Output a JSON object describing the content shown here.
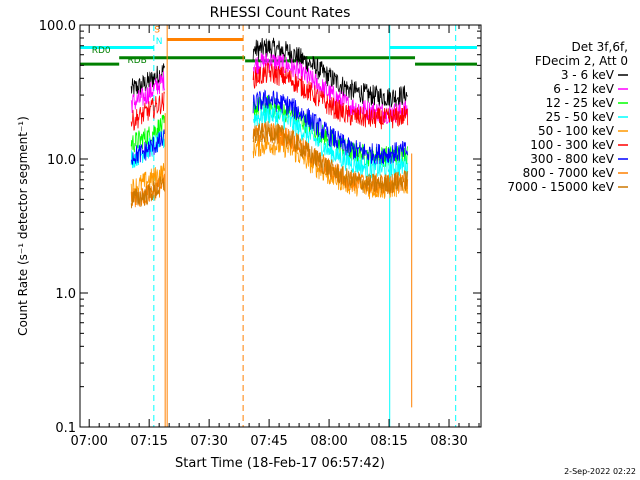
{
  "chart_data": {
    "type": "line",
    "title": "RHESSI Count Rates",
    "xlabel": "Start Time (18-Feb-17 06:57:42)",
    "ylabel": "Count Rate (s⁻¹ detector segment⁻¹)",
    "y_scale": "log",
    "ylim": [
      0.1,
      100.0
    ],
    "xlim": [
      "06:57:42",
      "08:38:00"
    ],
    "x_ticks": [
      "07:00",
      "07:15",
      "07:30",
      "07:45",
      "08:00",
      "08:15",
      "08:30"
    ],
    "y_ticks": [
      "0.1",
      "1.0",
      "10.0",
      "100.0"
    ],
    "grid": false,
    "legend_position": "right",
    "legend_header": [
      "Det 3f,6f,",
      "FDecim 2, Att 0"
    ],
    "series": [
      {
        "name": "3 - 6 keV",
        "color": "#000000",
        "segments": [
          {
            "t": [
              "07:10:30",
              "07:13:00",
              "07:15:00",
              "07:17:00",
              "07:18:50"
            ],
            "y": [
              33,
              35,
              38,
              42,
              46
            ]
          },
          {
            "t": [
              "07:41:00",
              "07:45:00",
              "07:50:00",
              "07:55:00",
              "08:00:00",
              "08:05:00",
              "08:10:00",
              "08:15:00",
              "08:19:40"
            ],
            "y": [
              65,
              68,
              63,
              52,
              41,
              33,
              30,
              29,
              30
            ]
          }
        ]
      },
      {
        "name": "6 - 12 keV",
        "color": "#ff00ff",
        "segments": [
          {
            "t": [
              "07:10:30",
              "07:13:00",
              "07:15:00",
              "07:17:00",
              "07:18:50"
            ],
            "y": [
              26,
              28,
              31,
              35,
              39
            ]
          },
          {
            "t": [
              "07:41:00",
              "07:45:00",
              "07:50:00",
              "07:55:00",
              "08:00:00",
              "08:05:00",
              "08:10:00",
              "08:15:00",
              "08:19:40"
            ],
            "y": [
              50,
              54,
              49,
              40,
              31,
              25,
              23,
              22,
              23
            ]
          }
        ]
      },
      {
        "name": "12 - 25 keV",
        "color": "#00ff00",
        "segments": [
          {
            "t": [
              "07:10:30",
              "07:13:00",
              "07:15:00",
              "07:17:00",
              "07:18:50"
            ],
            "y": [
              13,
              14,
              15,
              17,
              18
            ]
          },
          {
            "t": [
              "07:41:00",
              "07:45:00",
              "07:50:00",
              "07:55:00",
              "08:00:00",
              "08:05:00",
              "08:10:00",
              "08:15:00",
              "08:19:40"
            ],
            "y": [
              24,
              25,
              22,
              18,
              14,
              11.5,
              10.5,
              10.5,
              11
            ]
          }
        ]
      },
      {
        "name": "25 - 50 keV",
        "color": "#00ffff",
        "segments": [
          {
            "t": [
              "07:10:30",
              "07:13:00",
              "07:15:00",
              "07:17:00",
              "07:18:50"
            ],
            "y": [
              10,
              11,
              12,
              13,
              14
            ]
          },
          {
            "t": [
              "07:41:00",
              "07:45:00",
              "07:50:00",
              "07:55:00",
              "08:00:00",
              "08:05:00",
              "08:10:00",
              "08:15:00",
              "08:19:40"
            ],
            "y": [
              20,
              22,
              19,
              15,
              11.5,
              9.5,
              8.5,
              8.5,
              9
            ]
          }
        ]
      },
      {
        "name": "50 - 100 keV",
        "color": "#ff9900",
        "segments": [
          {
            "t": [
              "07:10:30",
              "07:13:00",
              "07:15:00",
              "07:17:00",
              "07:18:50"
            ],
            "y": [
              6,
              6.5,
              7,
              7.5,
              8
            ]
          },
          {
            "t": [
              "07:41:00",
              "07:45:00",
              "07:50:00",
              "07:55:00",
              "08:00:00",
              "08:05:00",
              "08:10:00",
              "08:15:00",
              "08:19:40"
            ],
            "y": [
              12,
              13,
              12,
              9.5,
              7.5,
              6.5,
              6,
              6,
              6.5
            ]
          }
        ]
      },
      {
        "name": "100 - 300 keV",
        "color": "#ff0000",
        "segments": [
          {
            "t": [
              "07:10:30",
              "07:13:00",
              "07:15:00",
              "07:17:00",
              "07:18:50"
            ],
            "y": [
              19,
              21,
              23,
              25,
              27
            ]
          },
          {
            "t": [
              "07:41:00",
              "07:45:00",
              "07:50:00",
              "07:55:00",
              "08:00:00",
              "08:05:00",
              "08:10:00",
              "08:15:00",
              "08:19:40"
            ],
            "y": [
              40,
              44,
              40,
              32,
              25,
              21,
              20,
              20,
              21
            ]
          }
        ]
      },
      {
        "name": "300 - 800 keV",
        "color": "#0000ff",
        "segments": [
          {
            "t": [
              "07:10:30",
              "07:13:00",
              "07:15:00",
              "07:17:00",
              "07:18:50"
            ],
            "y": [
              10.5,
              11,
              12,
              13,
              14
            ]
          },
          {
            "t": [
              "07:41:00",
              "07:45:00",
              "07:50:00",
              "07:55:00",
              "08:00:00",
              "08:05:00",
              "08:10:00",
              "08:15:00",
              "08:19:40"
            ],
            "y": [
              26,
              28,
              25,
              20,
              15,
              12,
              11,
              11,
              11.5
            ]
          }
        ]
      },
      {
        "name": "800 - 7000 keV",
        "color": "#ff8000",
        "segments": [
          {
            "t": [
              "07:10:30",
              "07:13:00",
              "07:15:00",
              "07:17:00",
              "07:18:50"
            ],
            "y": [
              5,
              5.2,
              5.5,
              6,
              6.5
            ]
          },
          {
            "t": [
              "07:41:00",
              "07:45:00",
              "07:50:00",
              "07:55:00",
              "08:00:00",
              "08:05:00",
              "08:10:00",
              "08:15:00",
              "08:19:40"
            ],
            "y": [
              15,
              16,
              14.5,
              11,
              8.5,
              7,
              6.5,
              6.5,
              7
            ]
          }
        ]
      },
      {
        "name": "7000 - 15000 keV",
        "color": "#cc7700",
        "segments": [
          {
            "t": [
              "07:10:30",
              "07:13:00",
              "07:15:00",
              "07:17:00",
              "07:18:50"
            ],
            "y": [
              5,
              5.2,
              5.5,
              6,
              6.5
            ]
          },
          {
            "t": [
              "07:41:00",
              "07:45:00",
              "07:50:00",
              "07:55:00",
              "08:00:00",
              "08:05:00",
              "08:10:00",
              "08:15:00",
              "08:19:40"
            ],
            "y": [
              15,
              16,
              14.5,
              11,
              8.5,
              7,
              6.5,
              6.5,
              7
            ]
          }
        ]
      }
    ],
    "vlines": [
      {
        "t": "06:57:42",
        "color": "#00ffff",
        "style": "solid"
      },
      {
        "t": "07:16:10",
        "color": "#00ffff",
        "style": "dashed"
      },
      {
        "t": "07:19:30",
        "color": "#ff8000",
        "style": "solid"
      },
      {
        "t": "07:38:30",
        "color": "#ff8000",
        "style": "dashed"
      },
      {
        "t": "08:15:10",
        "color": "#00ffff",
        "style": "solid"
      },
      {
        "t": "08:31:40",
        "color": "#00ffff",
        "style": "dashed"
      }
    ],
    "flag_bars": [
      {
        "t0": "06:57:42",
        "t1": "07:16:10",
        "y": 68,
        "color": "#00ffff"
      },
      {
        "t0": "08:15:10",
        "t1": "08:37:00",
        "y": 68,
        "color": "#00ffff"
      },
      {
        "t0": "07:19:30",
        "t1": "07:38:30",
        "y": 78,
        "color": "#ff8000"
      },
      {
        "t0": "06:57:42",
        "t1": "07:07:30",
        "y": 51,
        "color": "#008000"
      },
      {
        "t0": "07:07:30",
        "t1": "07:39:00",
        "y": 57,
        "color": "#008000"
      },
      {
        "t0": "07:39:00",
        "t1": "07:53:30",
        "y": 54,
        "color": "#008000"
      },
      {
        "t0": "07:53:30",
        "t1": "08:21:30",
        "y": 57,
        "color": "#008000"
      },
      {
        "t0": "08:21:30",
        "t1": "08:37:00",
        "y": 51,
        "color": "#008000"
      }
    ],
    "flag_labels": [
      {
        "text": "RD0",
        "t": "07:03:00",
        "y": 62,
        "color": "#008000"
      },
      {
        "text": "RDB",
        "t": "07:12:00",
        "y": 52,
        "color": "#008000"
      },
      {
        "text": "S",
        "t": "07:17:00",
        "y": 88,
        "color": "#ff8000"
      },
      {
        "text": "N",
        "t": "07:17:30",
        "y": 72,
        "color": "#00ffff"
      }
    ],
    "spikes": [
      {
        "t": "07:19:00",
        "y_low": 0.1,
        "y_high": 22,
        "color": "#ff8000"
      },
      {
        "t": "08:20:40",
        "y_low": 0.14,
        "y_high": 11,
        "color": "#ff8000"
      }
    ]
  },
  "footer": {
    "date_stamp": "2-Sep-2022 02:22"
  }
}
